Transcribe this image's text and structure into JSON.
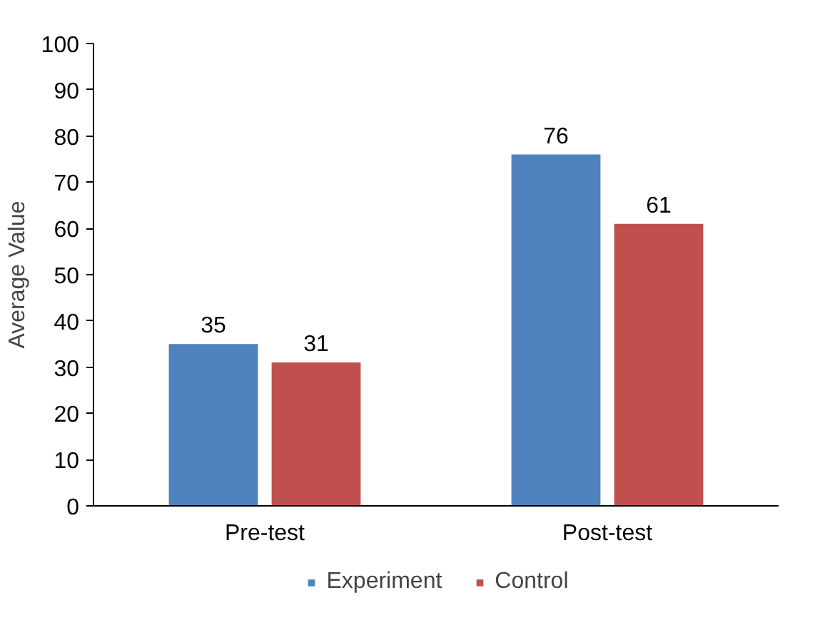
{
  "chart_data": {
    "type": "bar",
    "ylabel": "Average Value",
    "categories": [
      "Pre-test",
      "Post-test"
    ],
    "series": [
      {
        "name": "Experiment",
        "color": "#4f81bd",
        "values": [
          35,
          76
        ]
      },
      {
        "name": "Control",
        "color": "#c0504d",
        "values": [
          31,
          61
        ]
      }
    ],
    "ylim": [
      0,
      100
    ],
    "yticks": [
      0,
      10,
      20,
      30,
      40,
      50,
      60,
      70,
      80,
      90,
      100
    ],
    "grid": false,
    "legend": "bottom",
    "data_labels": true
  }
}
